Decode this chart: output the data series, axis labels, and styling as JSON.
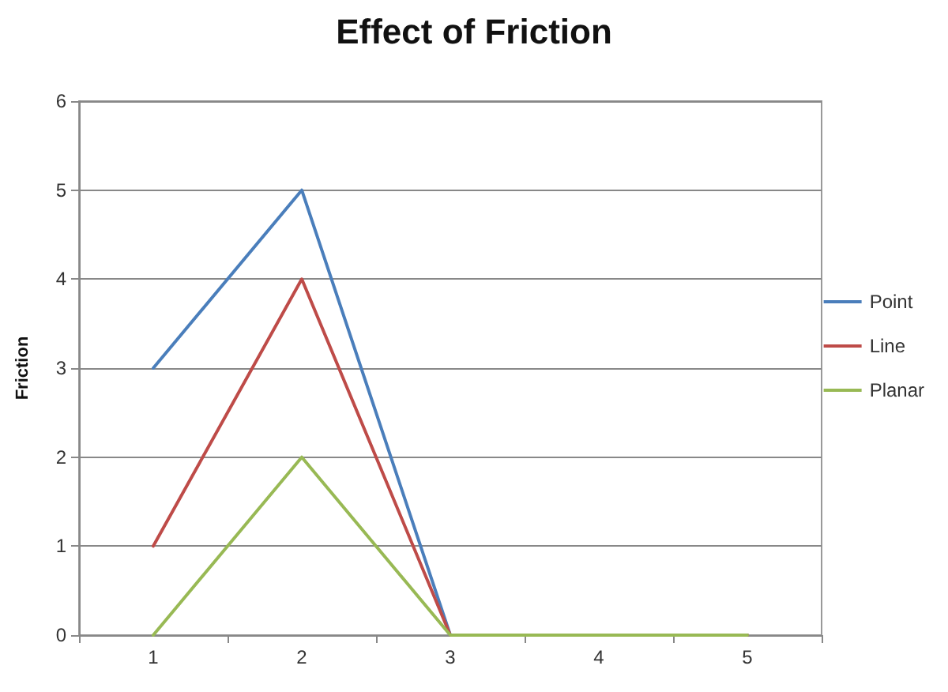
{
  "chart_data": {
    "type": "line",
    "title": "Effect of Friction",
    "ylabel": "Friction",
    "categories": [
      "1",
      "2",
      "3",
      "4",
      "5"
    ],
    "series": [
      {
        "name": "Point",
        "color": "#4a7ebb",
        "values": [
          3,
          5,
          0,
          0,
          0
        ]
      },
      {
        "name": "Line",
        "color": "#be4b48",
        "values": [
          1,
          4,
          0,
          0,
          0
        ]
      },
      {
        "name": "Planar",
        "color": "#98b954",
        "values": [
          0,
          2,
          0,
          0,
          0
        ]
      }
    ],
    "ylim": [
      0,
      6
    ],
    "yticks": [
      0,
      1,
      2,
      3,
      4,
      5,
      6
    ],
    "grid": "y",
    "legend": "right",
    "marker": "none",
    "line_style": "solid"
  }
}
